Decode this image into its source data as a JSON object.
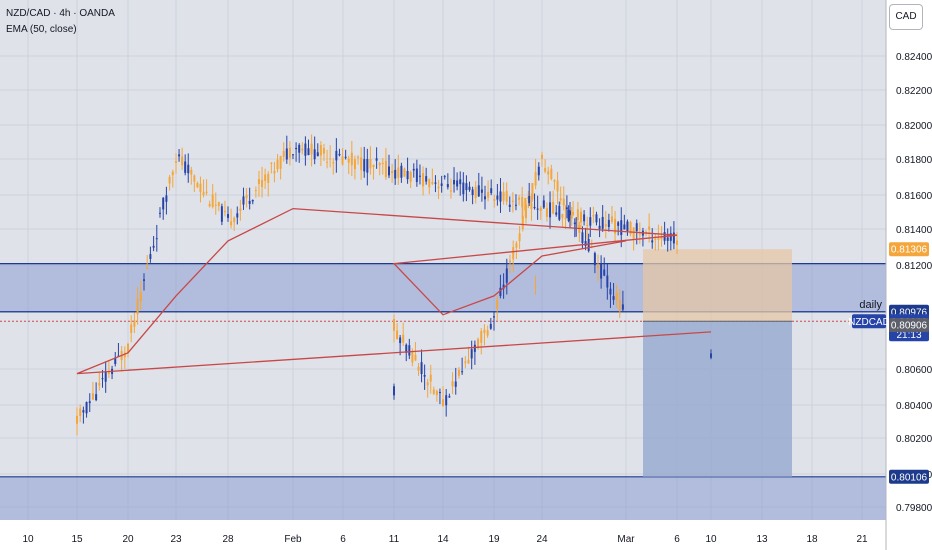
{
  "legend": {
    "symbol_line": "NZD/CAD · 4h · OANDA",
    "indicator_line": "EMA (50, close)"
  },
  "currency_button": "CAD",
  "colors": {
    "background": "#dfe2e9",
    "up_candle": "#2643a8",
    "down_candle": "#f4a63a",
    "ema": "#c84848",
    "zone_fill": "#8c9fd6",
    "zone_border": "#1d3a8c",
    "target_box": "#9aacd0",
    "stop_box": "#e6c7a6"
  },
  "chart_data": {
    "type": "candlestick",
    "x_tick_labels": [
      "10",
      "15",
      "20",
      "23",
      "28",
      "Feb",
      "6",
      "11",
      "14",
      "19",
      "24",
      "Mar",
      "6",
      "10",
      "13",
      "18",
      "21"
    ],
    "y_tick_labels": [
      "0.82400",
      "0.82200",
      "0.82000",
      "0.81800",
      "0.81600",
      "0.81400",
      "0.81200",
      "0.80600",
      "0.80400",
      "0.80200",
      "0.80000",
      "0.79800"
    ],
    "ylim": [
      0.7972,
      0.8262
    ],
    "series": [
      {
        "name": "EMA (50, close)",
        "type": "line",
        "points": [
          [
            "10",
            0.8087
          ],
          [
            "15",
            0.8065
          ],
          [
            "20",
            0.8076
          ],
          [
            "23",
            0.8106
          ],
          [
            "28",
            0.8135
          ],
          [
            "Feb",
            0.8152
          ],
          [
            "6",
            0.8138
          ],
          [
            "11",
            0.8123
          ],
          [
            "14",
            0.8096
          ],
          [
            "19",
            0.8106
          ],
          [
            "24",
            0.8127
          ],
          [
            "Mar",
            0.8135
          ]
        ]
      }
    ],
    "anchors": [
      [
        "10",
        0.8072
      ],
      [
        "15",
        0.804
      ],
      [
        "20",
        0.808
      ],
      [
        "23",
        0.818
      ],
      [
        "28",
        0.8145
      ],
      [
        "Feb",
        0.8185
      ],
      [
        "6",
        0.8135
      ],
      [
        "11",
        0.809
      ],
      [
        "14",
        0.805
      ],
      [
        "19",
        0.8095
      ],
      [
        "24",
        0.8178
      ],
      [
        "Mar",
        0.8095
      ]
    ],
    "zones": [
      {
        "from": 0.80976,
        "to": 0.8123
      },
      {
        "from": 0.7983,
        "to": 0.80106
      }
    ],
    "daily_line": {
      "label": "daily",
      "value": 0.80976
    },
    "position": {
      "entry": 0.80926,
      "stop": 0.81306,
      "target": 0.80106
    },
    "price_labels": [
      {
        "text": "0.81306",
        "value": 0.81306,
        "bg": "#f4a63a",
        "fg": "#ffffff"
      },
      {
        "text": "0.80976",
        "value": 0.80976,
        "bg": "#1d3a8c",
        "fg": "#ffffff"
      },
      {
        "text": "NZDCAD",
        "bg": "#2643a8",
        "fg": "#ffffff"
      },
      {
        "text": "0.80926",
        "value": 0.80926,
        "bg": "#2643a8",
        "fg": "#ffffff"
      },
      {
        "text": "21:13",
        "bg": "#2643a8",
        "fg": "#ffffff"
      },
      {
        "text": "0.80906",
        "value": 0.80906,
        "bg": "#5d606b",
        "fg": "#ffffff"
      },
      {
        "text": "0.80106",
        "value": 0.80106,
        "bg": "#1d3a8c",
        "fg": "#ffffff"
      }
    ]
  }
}
